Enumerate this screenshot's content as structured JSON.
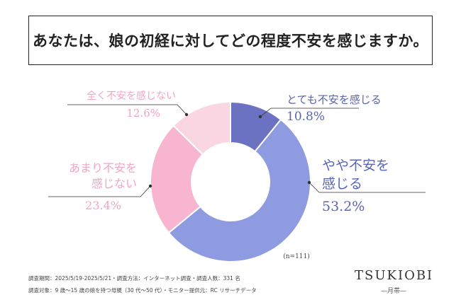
{
  "title": "あなたは、娘の初経に対してどの程度不安を感じますか。",
  "n_label": "(n=111)",
  "footer": {
    "line1": "調査期間：2025/5/19-2025/5/21・調査方法：インターネット調査・調査人数：331 名",
    "line2": "調査対象：9 歳〜15 歳の娘を持つ母親（30 代〜50 代）・モニター提供元：RC リサーチデータ"
  },
  "brand": {
    "name": "TSUKIOBI",
    "sub": "—月帯—"
  },
  "colors": {
    "totemo": "#6b72c2",
    "yaya": "#8e9be0",
    "amari": "#f7b5d0",
    "mattaku": "#f9d6e2",
    "label_blue": "#5a63b5",
    "label_pink": "#f4a3c4"
  },
  "chart_data": {
    "type": "pie",
    "donut": true,
    "start": "12 o'clock, clockwise",
    "slices": [
      {
        "label": "とても不安を感じる",
        "value": 10.8,
        "value_label": "10.8%"
      },
      {
        "label": "やや不安を感じる",
        "value": 53.2,
        "value_label": "53.2%"
      },
      {
        "label": "あまり不安を感じない",
        "value": 23.4,
        "value_label": "23.4%"
      },
      {
        "label": "全く不安を感じない",
        "value": 12.6,
        "value_label": "12.6%"
      }
    ]
  }
}
